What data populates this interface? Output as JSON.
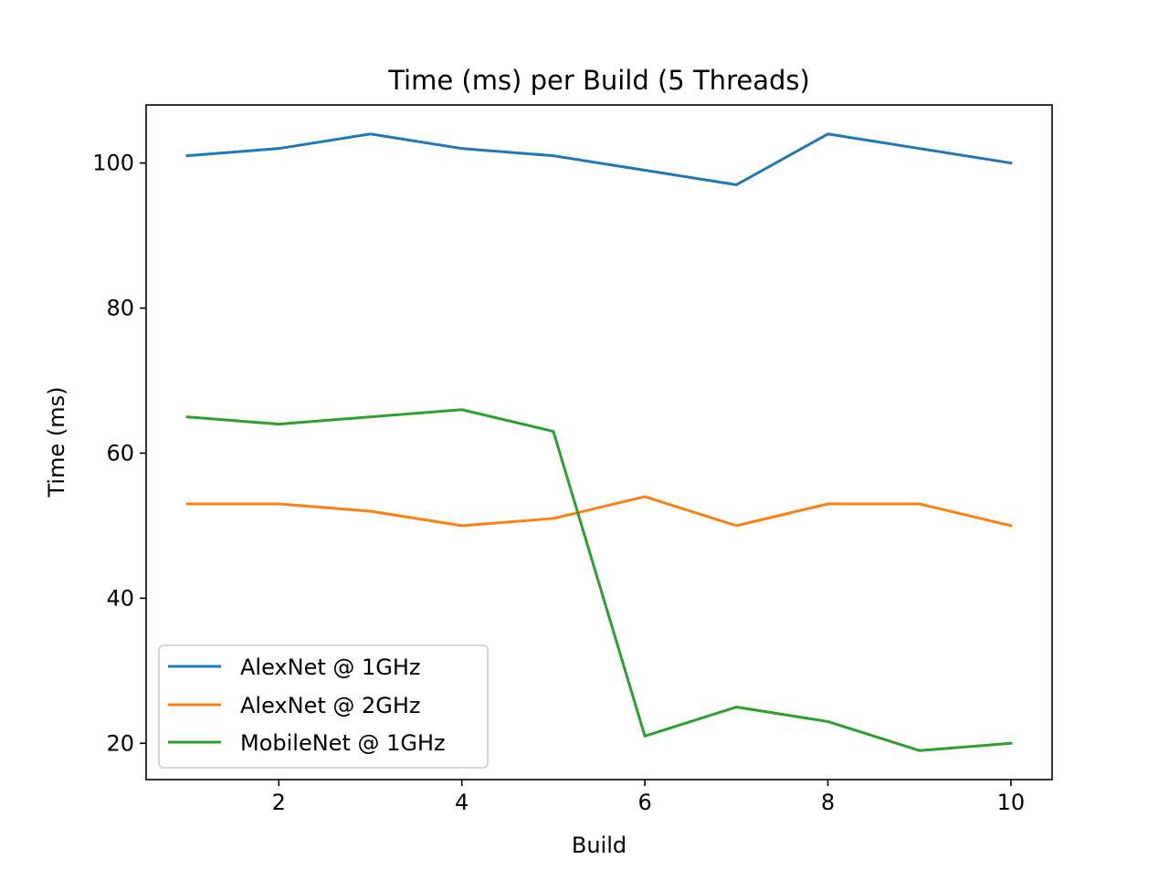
{
  "chart_data": {
    "type": "line",
    "title": "Time (ms) per Build (5 Threads)",
    "xlabel": "Build",
    "ylabel": "Time (ms)",
    "x": [
      1,
      2,
      3,
      4,
      5,
      6,
      7,
      8,
      9,
      10
    ],
    "xlim": [
      0.55,
      10.45
    ],
    "ylim": [
      15,
      108
    ],
    "xticks": [
      2,
      4,
      6,
      8,
      10
    ],
    "yticks": [
      20,
      40,
      60,
      80,
      100
    ],
    "grid": false,
    "legend_position": "lower-left",
    "series": [
      {
        "name": "AlexNet @ 1GHz",
        "color": "#1f77b4",
        "values": [
          101,
          102,
          104,
          102,
          101,
          99,
          97,
          104,
          102,
          100
        ]
      },
      {
        "name": "AlexNet @ 2GHz",
        "color": "#ff7f0e",
        "values": [
          53,
          53,
          52,
          50,
          51,
          54,
          50,
          53,
          53,
          50
        ]
      },
      {
        "name": "MobileNet @ 1GHz",
        "color": "#2ca02c",
        "values": [
          65,
          64,
          65,
          66,
          63,
          21,
          25,
          23,
          19,
          20
        ]
      }
    ]
  }
}
